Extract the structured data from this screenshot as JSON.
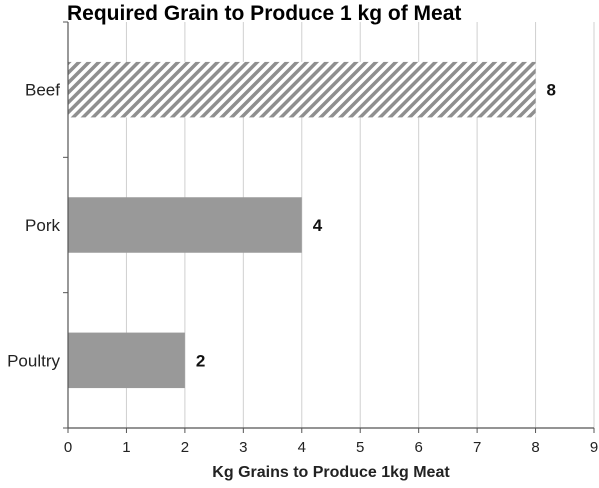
{
  "chart_data": {
    "type": "bar",
    "orientation": "horizontal",
    "title": "Required Grain to Produce 1 kg of Meat",
    "xlabel": "Kg Grains to Produce 1kg Meat",
    "ylabel": "",
    "categories": [
      "Beef",
      "Pork",
      "Poultry"
    ],
    "values": [
      8,
      4,
      2
    ],
    "value_labels": [
      "8",
      "4",
      "2"
    ],
    "bar_styles": [
      "hatched",
      "solid",
      "solid"
    ],
    "xlim": [
      0,
      9
    ],
    "x_ticks": [
      0,
      1,
      2,
      3,
      4,
      5,
      6,
      7,
      8,
      9
    ],
    "grid": "vertical",
    "legend": "none",
    "colors": {
      "bar_fill": "#999999",
      "hatch_stripe": "#8f8f8f",
      "hatch_background": "#ffffff",
      "grid": "#d0d0d0",
      "axis": "#555555"
    }
  }
}
